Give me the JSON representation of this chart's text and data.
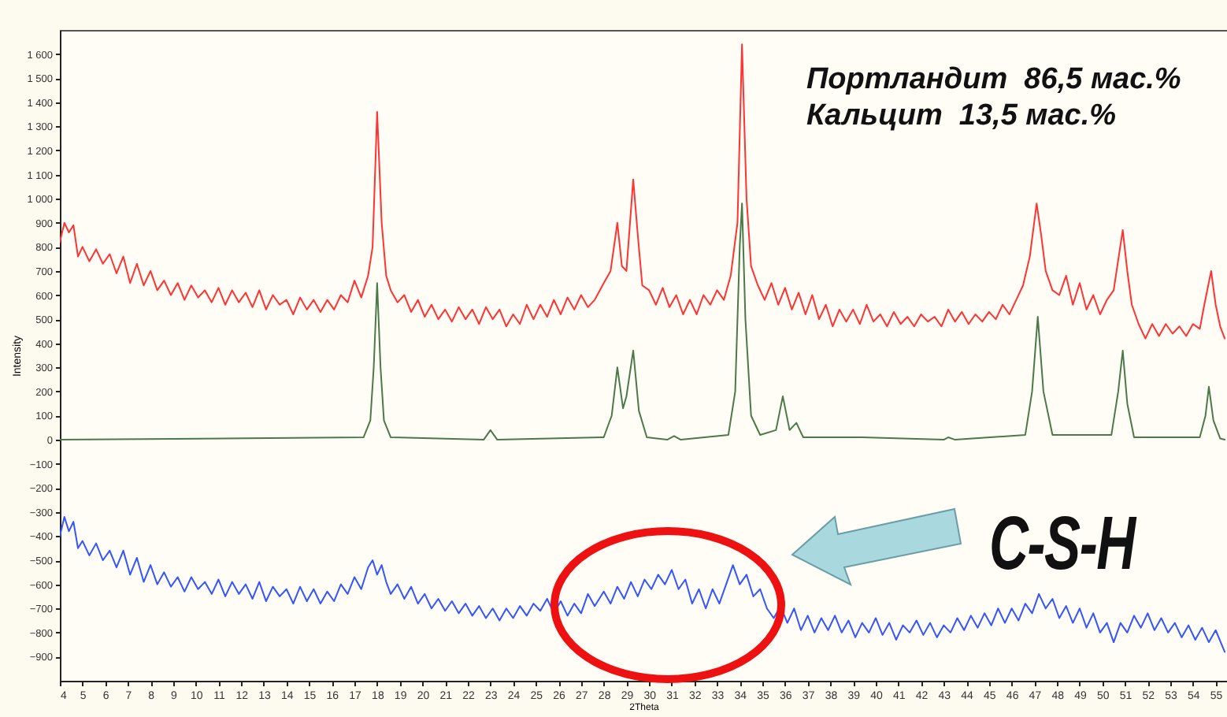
{
  "chart_data": {
    "type": "line",
    "xlabel": "2Theta",
    "ylabel": "Intensity",
    "xlim": [
      4,
      55.5
    ],
    "xticks": [
      4,
      5,
      6,
      7,
      8,
      9,
      10,
      11,
      12,
      13,
      14,
      15,
      16,
      17,
      18,
      19,
      20,
      21,
      22,
      23,
      24,
      25,
      26,
      27,
      28,
      29,
      30,
      31,
      32,
      33,
      34,
      35,
      36,
      37,
      38,
      39,
      40,
      41,
      42,
      43,
      44,
      45,
      46,
      47,
      48,
      49,
      50,
      51,
      52,
      53,
      54,
      55
    ],
    "ylim": [
      -1000,
      1700
    ],
    "yticks": [
      -900,
      -800,
      -700,
      -600,
      -500,
      -400,
      -300,
      -200,
      -100,
      0,
      100,
      200,
      300,
      400,
      500,
      600,
      700,
      800,
      900,
      {
        "value": 1000,
        "label": "1 000"
      },
      {
        "value": 1100,
        "label": "1 100"
      },
      {
        "value": 1200,
        "label": "1 200"
      },
      {
        "value": 1300,
        "label": "1 300"
      },
      {
        "value": 1400,
        "label": "1 400"
      },
      {
        "value": 1500,
        "label": "1 500"
      },
      {
        "value": 1600,
        "label": "1 600"
      }
    ],
    "grid": false,
    "marker": "none",
    "line_style": "solid",
    "series": [
      {
        "color": "#ff3333",
        "x": [
          4.0,
          4.2,
          4.4,
          4.6,
          4.8,
          5.0,
          5.3,
          5.6,
          5.9,
          6.2,
          6.5,
          6.8,
          7.1,
          7.4,
          7.7,
          8.0,
          8.3,
          8.6,
          8.9,
          9.2,
          9.5,
          9.8,
          10.1,
          10.4,
          10.7,
          11.0,
          11.3,
          11.6,
          11.9,
          12.2,
          12.5,
          12.8,
          13.1,
          13.4,
          13.7,
          14.0,
          14.3,
          14.6,
          14.9,
          15.2,
          15.5,
          15.8,
          16.1,
          16.4,
          16.7,
          17.0,
          17.3,
          17.6,
          17.8,
          18.0,
          18.2,
          18.4,
          18.6,
          18.9,
          19.2,
          19.5,
          19.8,
          20.1,
          20.4,
          20.7,
          21.0,
          21.3,
          21.6,
          21.9,
          22.2,
          22.5,
          22.8,
          23.1,
          23.4,
          23.7,
          24.0,
          24.3,
          24.6,
          24.9,
          25.2,
          25.5,
          25.8,
          26.1,
          26.4,
          26.7,
          27.0,
          27.3,
          27.6,
          28.0,
          28.3,
          28.6,
          28.8,
          29.0,
          29.3,
          29.5,
          29.7,
          30.0,
          30.3,
          30.6,
          30.9,
          31.2,
          31.5,
          31.8,
          32.1,
          32.4,
          32.7,
          33.0,
          33.3,
          33.6,
          33.9,
          34.1,
          34.3,
          34.5,
          34.8,
          35.1,
          35.4,
          35.7,
          36.0,
          36.3,
          36.6,
          36.9,
          37.2,
          37.5,
          37.8,
          38.1,
          38.4,
          38.7,
          39.0,
          39.3,
          39.6,
          39.9,
          40.2,
          40.5,
          40.8,
          41.1,
          41.4,
          41.7,
          42.0,
          42.3,
          42.6,
          42.9,
          43.2,
          43.5,
          43.8,
          44.1,
          44.4,
          44.7,
          45.0,
          45.3,
          45.6,
          45.9,
          46.2,
          46.5,
          46.8,
          47.1,
          47.3,
          47.5,
          47.8,
          48.1,
          48.4,
          48.7,
          49.0,
          49.3,
          49.6,
          49.9,
          50.2,
          50.5,
          50.9,
          51.1,
          51.3,
          51.6,
          51.9,
          52.2,
          52.5,
          52.8,
          53.1,
          53.4,
          53.7,
          54.0,
          54.3,
          54.5,
          54.8,
          55.0,
          55.2,
          55.4
        ],
        "values": [
          820,
          900,
          860,
          890,
          760,
          800,
          740,
          790,
          730,
          770,
          690,
          760,
          650,
          730,
          640,
          700,
          620,
          660,
          600,
          650,
          580,
          640,
          590,
          620,
          570,
          630,
          560,
          620,
          570,
          610,
          550,
          620,
          540,
          600,
          560,
          580,
          520,
          590,
          540,
          580,
          530,
          580,
          540,
          600,
          570,
          660,
          590,
          680,
          800,
          1360,
          900,
          680,
          620,
          570,
          600,
          530,
          580,
          510,
          560,
          500,
          540,
          490,
          550,
          500,
          540,
          480,
          550,
          500,
          540,
          470,
          520,
          480,
          560,
          500,
          560,
          510,
          580,
          520,
          590,
          540,
          600,
          550,
          580,
          650,
          700,
          900,
          720,
          700,
          1080,
          850,
          640,
          620,
          560,
          630,
          550,
          600,
          520,
          580,
          520,
          600,
          560,
          620,
          580,
          680,
          900,
          1640,
          1000,
          720,
          640,
          580,
          650,
          560,
          630,
          540,
          610,
          520,
          600,
          500,
          560,
          470,
          540,
          490,
          540,
          480,
          560,
          490,
          520,
          470,
          530,
          480,
          510,
          470,
          520,
          490,
          510,
          470,
          540,
          490,
          530,
          480,
          520,
          490,
          530,
          500,
          560,
          520,
          580,
          640,
          760,
          980,
          850,
          700,
          620,
          600,
          680,
          560,
          650,
          540,
          600,
          520,
          580,
          620,
          870,
          700,
          560,
          480,
          420,
          480,
          430,
          480,
          440,
          470,
          430,
          480,
          460,
          560,
          700,
          560,
          470,
          420
        ]
      },
      {
        "color": "#4a7a4a",
        "x": [
          4,
          17.4,
          17.7,
          17.85,
          18.0,
          18.15,
          18.3,
          18.6,
          22.7,
          23.0,
          23.3,
          28.0,
          28.35,
          28.6,
          28.85,
          29.0,
          29.3,
          29.55,
          29.9,
          30.8,
          31.1,
          31.4,
          33.5,
          33.8,
          34.0,
          34.1,
          34.25,
          34.5,
          34.9,
          35.6,
          35.9,
          36.2,
          36.5,
          36.8,
          39.4,
          43.0,
          43.2,
          43.5,
          46.6,
          46.9,
          47.15,
          47.4,
          47.8,
          50.4,
          50.7,
          50.9,
          51.1,
          51.4,
          54.3,
          54.55,
          54.7,
          54.9,
          55.2,
          55.4
        ],
        "values": [
          0,
          10,
          80,
          300,
          650,
          300,
          80,
          10,
          0,
          40,
          0,
          10,
          100,
          300,
          130,
          180,
          370,
          120,
          10,
          0,
          15,
          0,
          20,
          200,
          800,
          980,
          500,
          100,
          20,
          40,
          180,
          40,
          70,
          10,
          10,
          0,
          10,
          0,
          20,
          200,
          510,
          200,
          20,
          20,
          200,
          370,
          150,
          10,
          10,
          100,
          220,
          80,
          5,
          0
        ]
      },
      {
        "color": "#3355ff",
        "x": [
          4.0,
          4.2,
          4.4,
          4.6,
          4.8,
          5.0,
          5.3,
          5.6,
          5.9,
          6.2,
          6.5,
          6.8,
          7.1,
          7.4,
          7.7,
          8.0,
          8.3,
          8.6,
          8.9,
          9.2,
          9.5,
          9.8,
          10.1,
          10.4,
          10.7,
          11.0,
          11.3,
          11.6,
          11.9,
          12.2,
          12.5,
          12.8,
          13.1,
          13.4,
          13.7,
          14.0,
          14.3,
          14.6,
          14.9,
          15.2,
          15.5,
          15.8,
          16.1,
          16.4,
          16.7,
          17.0,
          17.3,
          17.6,
          17.8,
          18.0,
          18.2,
          18.4,
          18.6,
          18.9,
          19.2,
          19.5,
          19.8,
          20.1,
          20.4,
          20.7,
          21.0,
          21.3,
          21.6,
          21.9,
          22.2,
          22.5,
          22.8,
          23.1,
          23.4,
          23.7,
          24.0,
          24.3,
          24.6,
          24.9,
          25.2,
          25.5,
          25.8,
          26.1,
          26.4,
          26.7,
          27.0,
          27.3,
          27.6,
          28.0,
          28.3,
          28.6,
          28.9,
          29.2,
          29.5,
          29.8,
          30.1,
          30.4,
          30.7,
          31.0,
          31.3,
          31.6,
          31.9,
          32.2,
          32.5,
          32.8,
          33.1,
          33.4,
          33.7,
          34.0,
          34.3,
          34.6,
          34.9,
          35.2,
          35.5,
          35.8,
          36.1,
          36.4,
          36.7,
          37.0,
          37.3,
          37.6,
          37.9,
          38.2,
          38.5,
          38.8,
          39.1,
          39.4,
          39.7,
          40.0,
          40.3,
          40.6,
          40.9,
          41.2,
          41.5,
          41.8,
          42.1,
          42.4,
          42.7,
          43.0,
          43.3,
          43.6,
          43.9,
          44.2,
          44.5,
          44.8,
          45.1,
          45.4,
          45.7,
          46.0,
          46.3,
          46.6,
          46.9,
          47.2,
          47.5,
          47.8,
          48.1,
          48.4,
          48.7,
          49.0,
          49.3,
          49.6,
          49.9,
          50.2,
          50.5,
          50.8,
          51.1,
          51.4,
          51.7,
          52.0,
          52.3,
          52.6,
          52.9,
          53.2,
          53.5,
          53.8,
          54.1,
          54.4,
          54.7,
          55.0,
          55.4
        ],
        "values": [
          -400,
          -320,
          -380,
          -340,
          -450,
          -420,
          -480,
          -430,
          -500,
          -460,
          -530,
          -460,
          -560,
          -490,
          -590,
          -520,
          -600,
          -550,
          -610,
          -570,
          -630,
          -570,
          -620,
          -590,
          -640,
          -580,
          -650,
          -590,
          -640,
          -600,
          -660,
          -590,
          -670,
          -610,
          -650,
          -620,
          -680,
          -610,
          -670,
          -620,
          -680,
          -630,
          -670,
          -600,
          -640,
          -570,
          -620,
          -530,
          -500,
          -560,
          -520,
          -590,
          -640,
          -600,
          -660,
          -610,
          -680,
          -640,
          -700,
          -660,
          -710,
          -670,
          -720,
          -680,
          -730,
          -690,
          -740,
          -700,
          -750,
          -700,
          -740,
          -690,
          -730,
          -680,
          -710,
          -660,
          -720,
          -670,
          -730,
          -680,
          -720,
          -640,
          -690,
          -630,
          -680,
          -610,
          -660,
          -590,
          -650,
          -580,
          -620,
          -560,
          -600,
          -540,
          -620,
          -580,
          -680,
          -620,
          -700,
          -620,
          -680,
          -600,
          -520,
          -600,
          -560,
          -650,
          -620,
          -700,
          -740,
          -690,
          -760,
          -700,
          -790,
          -730,
          -800,
          -740,
          -790,
          -730,
          -800,
          -750,
          -820,
          -760,
          -800,
          -740,
          -810,
          -760,
          -830,
          -770,
          -800,
          -750,
          -810,
          -760,
          -820,
          -770,
          -800,
          -740,
          -790,
          -730,
          -780,
          -720,
          -770,
          -700,
          -760,
          -700,
          -750,
          -680,
          -720,
          -640,
          -700,
          -660,
          -740,
          -690,
          -760,
          -700,
          -780,
          -720,
          -800,
          -760,
          -840,
          -760,
          -800,
          -730,
          -780,
          -720,
          -790,
          -740,
          -800,
          -760,
          -820,
          -770,
          -830,
          -780,
          -840,
          -790,
          -880
        ]
      }
    ],
    "annotations": [
      "Портландит  86,5 мас.%",
      "Кальцит  13,5 мас.%",
      "C-S-H"
    ]
  }
}
